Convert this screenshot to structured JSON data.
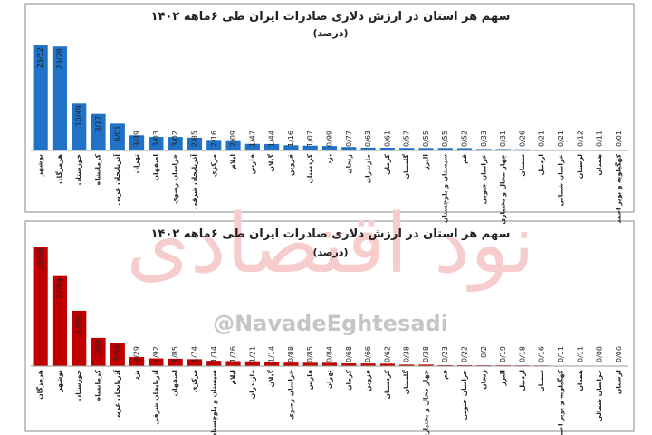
{
  "chart_data": [
    {
      "type": "bar",
      "title": "سهم هر استان در ارزش دلاری صادرات ایران طی ۶ماهه ۱۴۰۲",
      "subtitle": "(درصد)",
      "color": "#1f72c6",
      "categories": [
        "بوشهر",
        "هرمزگان",
        "خوزستان",
        "کرمانشاه",
        "آذربایجان غربی",
        "تهران",
        "اصفهان",
        "خراسان رضوی",
        "آذربایجان شرقی",
        "مرکزی",
        "ایلام",
        "فارس",
        "گیلان",
        "قزوین",
        "کردستان",
        "یزد",
        "زنجان",
        "مازندران",
        "کرمان",
        "گلستان",
        "البرز",
        "سیستان و بلوچستان",
        "قم",
        "خراسان جنوبی",
        "چهار محال و بختیاری",
        "سمنان",
        "اردبیل",
        "خراسان شمالی",
        "لرستان",
        "همدان",
        "کهگیلویه و بویر احمد"
      ],
      "values": [
        23.52,
        23.28,
        10.49,
        8.17,
        6.01,
        3.39,
        3.03,
        3.02,
        2.85,
        2.16,
        2.09,
        1.47,
        1.44,
        1.16,
        1.07,
        0.99,
        0.77,
        0.63,
        0.61,
        0.57,
        0.55,
        0.55,
        0.52,
        0.33,
        0.31,
        0.26,
        0.21,
        0.21,
        0.12,
        0.11,
        0.01
      ],
      "value_labels": [
        "23/52",
        "23/28",
        "10/49",
        "8/17",
        "6/01",
        "3/39",
        "3/03",
        "3/02",
        "2/85",
        "2/16",
        "2/09",
        "1/47",
        "1/44",
        "1/16",
        "1/07",
        "0/99",
        "0/77",
        "0/63",
        "0/61",
        "0/57",
        "0/55",
        "0/55",
        "0/52",
        "0/33",
        "0/31",
        "0/26",
        "0/21",
        "0/21",
        "0/12",
        "0/11",
        "0/01"
      ]
    },
    {
      "type": "bar",
      "title": "سهم هر استان در ارزش دلاری صادرات ایران طی ۶ماهه ۱۴۰۲",
      "subtitle": "(درصد)",
      "color": "#c00000",
      "watermark": "@NavadeEghtesadi",
      "logo": "نود اقتصادی",
      "categories": [
        "هرمزگان",
        "بوشهر",
        "خوزستان",
        "کرمانشاه",
        "آذربایجان غربی",
        "یزد",
        "آذربایجان شرقی",
        "اصفهان",
        "مرکزی",
        "سیستان و بلوچستان",
        "ایلام",
        "مازندران",
        "گیلان",
        "خراسان رضوی",
        "فارس",
        "تهران",
        "کرمان",
        "قزوین",
        "کردستان",
        "گلستان",
        "چهار محال و بختیاری",
        "قم",
        "خراسان جنوبی",
        "زنجان",
        "البرز",
        "اردبیل",
        "سمنان",
        "کهگیلویه و بویر احمد",
        "همدان",
        "خراسان شمالی",
        "لرستان"
      ],
      "values": [
        30.09,
        22.64,
        13.92,
        7.09,
        5.88,
        2.29,
        1.92,
        1.85,
        1.74,
        1.34,
        1.26,
        1.21,
        1.14,
        0.88,
        0.85,
        0.84,
        0.68,
        0.66,
        0.62,
        0.38,
        0.38,
        0.23,
        0.22,
        0.2,
        0.19,
        0.18,
        0.16,
        0.11,
        0.11,
        0.08,
        0.06
      ],
      "value_labels": [
        "30/09",
        "22/64",
        "13/92",
        "7/09",
        "5/88",
        "2/29",
        "1/92",
        "1/85",
        "1/74",
        "1/34",
        "1/26",
        "1/21",
        "1/14",
        "0/88",
        "0/85",
        "0/84",
        "0/68",
        "0/66",
        "0/62",
        "0/38",
        "0/38",
        "0/23",
        "0/22",
        "0/2",
        "0/19",
        "0/18",
        "0/16",
        "0/11",
        "0/11",
        "0/08",
        "0/06"
      ]
    }
  ]
}
